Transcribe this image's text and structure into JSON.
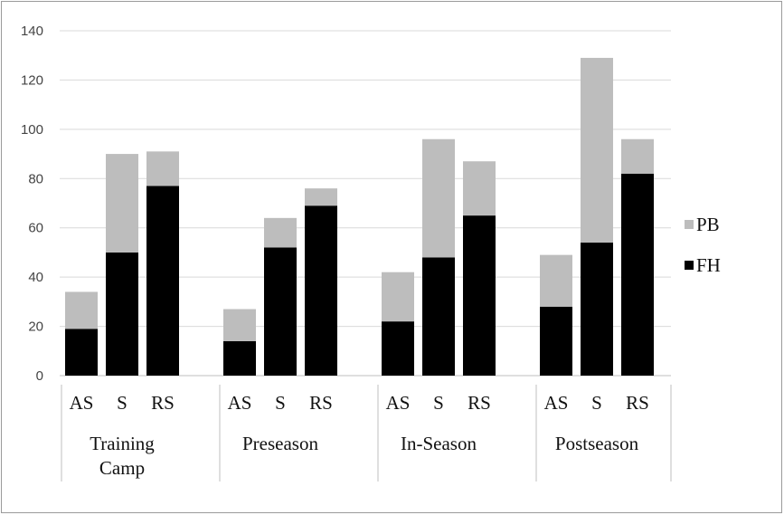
{
  "chart_data": {
    "type": "bar",
    "stacked": true,
    "groups": [
      {
        "label_lines": [
          "Training",
          "Camp"
        ],
        "categories": [
          "AS",
          "S",
          "RS"
        ]
      },
      {
        "label_lines": [
          "Preseason"
        ],
        "categories": [
          "AS",
          "S",
          "RS"
        ]
      },
      {
        "label_lines": [
          "In-Season"
        ],
        "categories": [
          "AS",
          "S",
          "RS"
        ]
      },
      {
        "label_lines": [
          "Postseason"
        ],
        "categories": [
          "AS",
          "S",
          "RS"
        ]
      }
    ],
    "series": [
      {
        "name": "FH",
        "color": "#000000",
        "values": [
          19,
          50,
          77,
          14,
          52,
          69,
          22,
          48,
          65,
          28,
          54,
          82
        ]
      },
      {
        "name": "PB",
        "color": "#bdbdbd",
        "values": [
          15,
          40,
          14,
          13,
          12,
          7,
          20,
          48,
          22,
          21,
          75,
          14
        ]
      }
    ],
    "ylim": [
      0,
      140
    ],
    "yticks": [
      0,
      20,
      40,
      60,
      80,
      100,
      120,
      140
    ],
    "grid": true,
    "legend": {
      "position": "right",
      "order": [
        "PB",
        "FH"
      ]
    }
  },
  "colors": {
    "grid": "#d9d9d9",
    "axis": "#bfbfbf",
    "frame": "#9a9a9a"
  }
}
